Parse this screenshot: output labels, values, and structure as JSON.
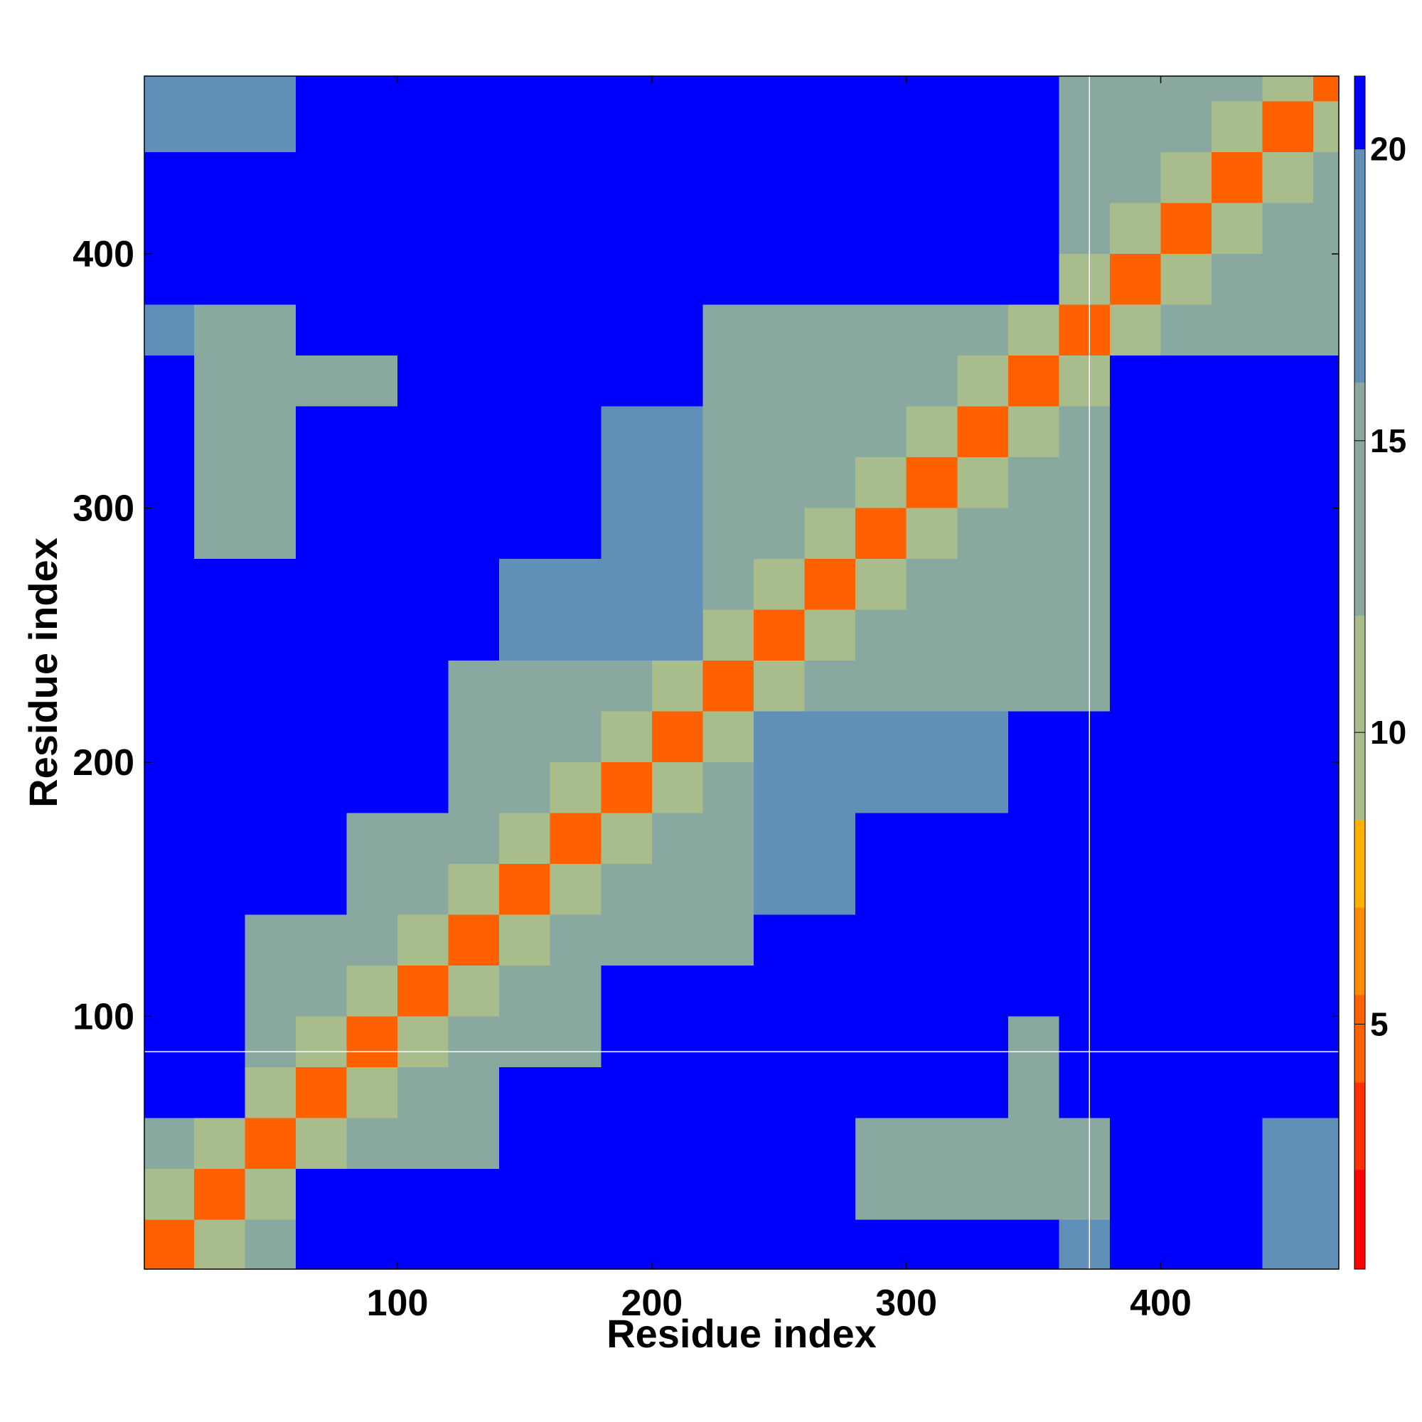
{
  "chart_data": {
    "type": "heatmap",
    "xlabel": "Residue index",
    "ylabel": "Residue index",
    "xlim": [
      0.5,
      470
    ],
    "ylim": [
      0.5,
      470
    ],
    "xticks": [
      100,
      200,
      300,
      400
    ],
    "yticks": [
      100,
      200,
      300,
      400
    ],
    "bins": [
      0.5,
      20,
      40,
      60,
      80,
      100,
      120,
      140,
      160,
      180,
      200,
      220,
      240,
      260,
      280,
      300,
      320,
      340,
      360,
      380,
      400,
      420,
      440,
      460,
      470
    ],
    "z": [
      [
        5,
        10,
        12,
        21,
        21,
        21,
        21,
        21,
        21,
        21,
        21,
        21,
        21,
        21,
        21,
        21,
        21,
        21,
        16,
        21,
        21,
        21,
        16,
        16
      ],
      [
        10,
        5,
        10,
        21,
        21,
        21,
        21,
        21,
        21,
        21,
        21,
        21,
        21,
        21,
        14,
        14,
        14,
        14,
        14,
        21,
        21,
        21,
        16,
        16
      ],
      [
        12,
        10,
        5,
        10,
        12,
        12,
        12,
        21,
        21,
        21,
        21,
        21,
        21,
        21,
        14,
        14,
        14,
        14,
        14,
        21,
        21,
        21,
        16,
        16
      ],
      [
        21,
        21,
        10,
        5,
        10,
        12,
        12,
        21,
        21,
        21,
        21,
        21,
        21,
        21,
        21,
        21,
        21,
        15,
        21,
        21,
        21,
        21,
        21,
        21
      ],
      [
        21,
        21,
        12,
        10,
        5,
        10,
        12,
        15,
        15,
        21,
        21,
        21,
        21,
        21,
        21,
        21,
        21,
        15,
        21,
        21,
        21,
        21,
        21,
        21
      ],
      [
        21,
        21,
        12,
        12,
        10,
        5,
        10,
        15,
        15,
        21,
        21,
        21,
        21,
        21,
        21,
        21,
        21,
        21,
        21,
        21,
        21,
        21,
        21,
        21
      ],
      [
        21,
        21,
        12,
        12,
        12,
        10,
        5,
        10,
        12,
        12,
        12,
        12,
        21,
        21,
        21,
        21,
        21,
        21,
        21,
        21,
        21,
        21,
        21,
        21
      ],
      [
        21,
        21,
        21,
        21,
        15,
        15,
        10,
        5,
        10,
        12,
        12,
        12,
        17,
        17,
        21,
        21,
        21,
        21,
        21,
        21,
        21,
        21,
        21,
        21
      ],
      [
        21,
        21,
        21,
        21,
        15,
        15,
        12,
        10,
        5,
        10,
        12,
        12,
        17,
        17,
        21,
        21,
        21,
        21,
        21,
        21,
        21,
        21,
        21,
        21
      ],
      [
        21,
        21,
        21,
        21,
        21,
        21,
        12,
        12,
        10,
        5,
        10,
        12,
        16,
        16,
        16,
        16,
        16,
        21,
        21,
        21,
        21,
        21,
        21,
        21
      ],
      [
        21,
        21,
        21,
        21,
        21,
        21,
        12,
        12,
        12,
        10,
        5,
        10,
        16,
        16,
        16,
        16,
        16,
        21,
        21,
        21,
        21,
        21,
        21,
        21
      ],
      [
        21,
        21,
        21,
        21,
        21,
        21,
        12,
        12,
        12,
        12,
        10,
        5,
        10,
        12,
        12,
        12,
        12,
        12,
        12,
        21,
        21,
        21,
        21,
        21
      ],
      [
        21,
        21,
        21,
        21,
        21,
        21,
        21,
        17,
        17,
        16,
        16,
        10,
        5,
        10,
        12,
        12,
        12,
        12,
        12,
        21,
        21,
        21,
        21,
        21
      ],
      [
        21,
        21,
        21,
        21,
        21,
        21,
        21,
        17,
        17,
        16,
        16,
        12,
        10,
        5,
        10,
        12,
        12,
        12,
        12,
        21,
        21,
        21,
        21,
        21
      ],
      [
        21,
        14,
        14,
        21,
        21,
        21,
        21,
        21,
        21,
        16,
        16,
        12,
        12,
        10,
        5,
        10,
        12,
        12,
        12,
        21,
        21,
        21,
        21,
        21
      ],
      [
        21,
        14,
        14,
        21,
        21,
        21,
        21,
        21,
        21,
        16,
        16,
        12,
        12,
        12,
        10,
        5,
        10,
        12,
        12,
        21,
        21,
        21,
        21,
        21
      ],
      [
        21,
        14,
        14,
        21,
        21,
        21,
        21,
        21,
        21,
        16,
        16,
        12,
        12,
        12,
        12,
        10,
        5,
        10,
        12,
        21,
        21,
        21,
        21,
        21
      ],
      [
        21,
        14,
        14,
        15,
        15,
        21,
        21,
        21,
        21,
        21,
        21,
        12,
        12,
        12,
        12,
        12,
        10,
        5,
        10,
        21,
        21,
        21,
        21,
        21
      ],
      [
        16,
        14,
        14,
        21,
        21,
        21,
        21,
        21,
        21,
        21,
        21,
        12,
        12,
        12,
        12,
        12,
        12,
        10,
        5,
        10,
        12,
        12,
        12,
        12
      ],
      [
        21,
        21,
        21,
        21,
        21,
        21,
        21,
        21,
        21,
        21,
        21,
        21,
        21,
        21,
        21,
        21,
        21,
        21,
        10,
        5,
        10,
        12,
        12,
        12
      ],
      [
        21,
        21,
        21,
        21,
        21,
        21,
        21,
        21,
        21,
        21,
        21,
        21,
        21,
        21,
        21,
        21,
        21,
        21,
        12,
        10,
        5,
        10,
        12,
        12
      ],
      [
        21,
        21,
        21,
        21,
        21,
        21,
        21,
        21,
        21,
        21,
        21,
        21,
        21,
        21,
        21,
        21,
        21,
        21,
        12,
        12,
        10,
        5,
        10,
        12
      ],
      [
        16,
        16,
        16,
        21,
        21,
        21,
        21,
        21,
        21,
        21,
        21,
        21,
        21,
        21,
        21,
        21,
        21,
        21,
        12,
        12,
        12,
        10,
        5,
        10
      ],
      [
        16,
        16,
        16,
        21,
        21,
        21,
        21,
        21,
        21,
        21,
        21,
        21,
        21,
        21,
        21,
        21,
        21,
        21,
        12,
        12,
        12,
        12,
        10,
        5
      ]
    ],
    "clim": [
      0.8,
      21.25
    ],
    "cticks": [
      5,
      10,
      15,
      20
    ],
    "levels": [
      0.8,
      2.5,
      4,
      5.5,
      7,
      8.5,
      12,
      16,
      20,
      21.25
    ],
    "colors": [
      "#ff0000",
      "#ff3000",
      "#ff6000",
      "#ff8c00",
      "#ffb000",
      "#a8bc8c",
      "#88a8a0",
      "#6090b8",
      "#0000ff"
    ],
    "vline": 372,
    "hline": 86
  }
}
